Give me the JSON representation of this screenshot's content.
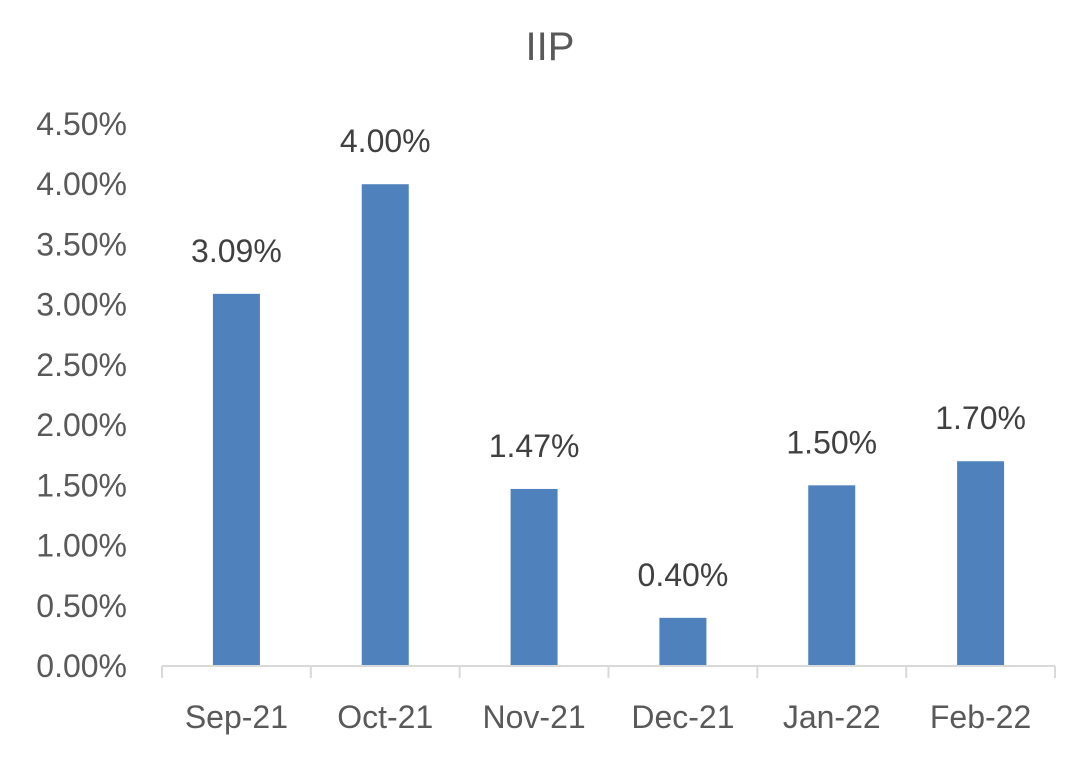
{
  "chart_data": {
    "type": "bar",
    "title": "IIP",
    "xlabel": "",
    "ylabel": "",
    "categories": [
      "Sep-21",
      "Oct-21",
      "Nov-21",
      "Dec-21",
      "Jan-22",
      "Feb-22"
    ],
    "values": [
      3.09,
      4.0,
      1.47,
      0.4,
      1.5,
      1.7
    ],
    "data_labels": [
      "3.09%",
      "4.00%",
      "1.47%",
      "0.40%",
      "1.50%",
      "1.70%"
    ],
    "ylim": [
      0,
      4.5
    ],
    "y_ticks": [
      0,
      0.5,
      1.0,
      1.5,
      2.0,
      2.5,
      3.0,
      3.5,
      4.0,
      4.5
    ],
    "y_tick_labels": [
      "0.00%",
      "0.50%",
      "1.00%",
      "1.50%",
      "2.00%",
      "2.50%",
      "3.00%",
      "3.50%",
      "4.00%",
      "4.50%"
    ],
    "bar_color": "#4F81BD",
    "axis_color": "#D9D9D9",
    "grid": false,
    "legend": "none"
  }
}
